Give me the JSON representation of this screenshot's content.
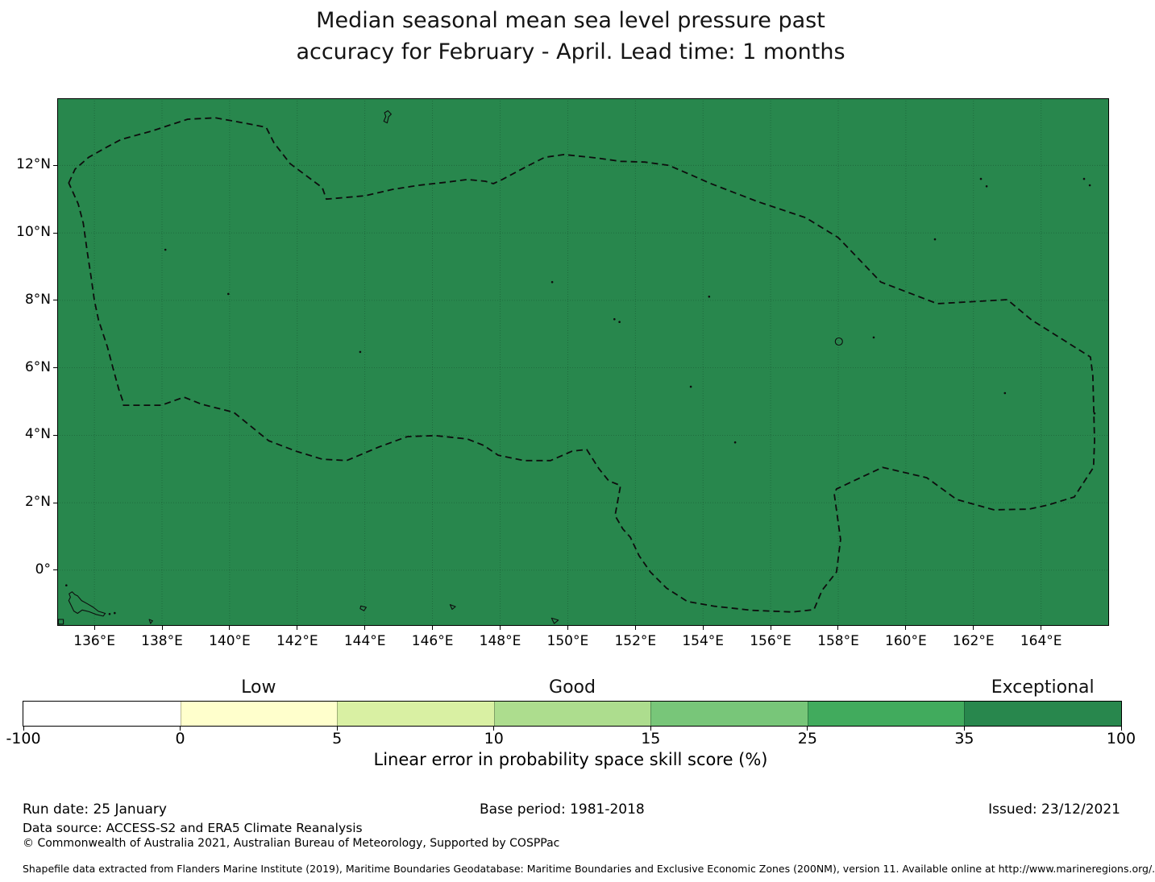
{
  "title": {
    "line1": "Median seasonal mean sea level pressure past",
    "line2": "accuracy for February - April. Lead time: 1 months"
  },
  "map": {
    "type": "filled geographic map",
    "fill_color": "#28874d",
    "extent": {
      "lon_min": 134.9,
      "lon_max": 166.01,
      "lat_min": -1.65,
      "lat_max": 13.99
    },
    "x_ticks": [
      {
        "lon": 136,
        "label": "136°E"
      },
      {
        "lon": 138,
        "label": "138°E"
      },
      {
        "lon": 140,
        "label": "140°E"
      },
      {
        "lon": 142,
        "label": "142°E"
      },
      {
        "lon": 144,
        "label": "144°E"
      },
      {
        "lon": 146,
        "label": "146°E"
      },
      {
        "lon": 148,
        "label": "148°E"
      },
      {
        "lon": 150,
        "label": "150°E"
      },
      {
        "lon": 152,
        "label": "152°E"
      },
      {
        "lon": 154,
        "label": "154°E"
      },
      {
        "lon": 156,
        "label": "156°E"
      },
      {
        "lon": 158,
        "label": "158°E"
      },
      {
        "lon": 160,
        "label": "160°E"
      },
      {
        "lon": 162,
        "label": "162°E"
      },
      {
        "lon": 164,
        "label": "164°E"
      }
    ],
    "y_ticks": [
      {
        "lat": 12,
        "label": "12°N"
      },
      {
        "lat": 10,
        "label": "10°N"
      },
      {
        "lat": 8,
        "label": "8°N"
      },
      {
        "lat": 6,
        "label": "6°N"
      },
      {
        "lat": 4,
        "label": "4°N"
      },
      {
        "lat": 2,
        "label": "2°N"
      },
      {
        "lat": 0,
        "label": "0°"
      }
    ],
    "eez_boundary": [
      [
        135.24,
        11.48
      ],
      [
        135.43,
        11.89
      ],
      [
        135.83,
        12.24
      ],
      [
        136.38,
        12.55
      ],
      [
        136.79,
        12.77
      ],
      [
        137.67,
        13.01
      ],
      [
        138.76,
        13.37
      ],
      [
        139.58,
        13.41
      ],
      [
        140.36,
        13.27
      ],
      [
        141.08,
        13.13
      ],
      [
        141.31,
        12.67
      ],
      [
        141.79,
        12.05
      ],
      [
        142.74,
        11.34
      ],
      [
        142.86,
        11.0
      ],
      [
        144.01,
        11.1
      ],
      [
        144.82,
        11.29
      ],
      [
        145.6,
        11.41
      ],
      [
        146.39,
        11.5
      ],
      [
        147.03,
        11.58
      ],
      [
        147.56,
        11.53
      ],
      [
        147.8,
        11.46
      ],
      [
        148.06,
        11.58
      ],
      [
        148.77,
        11.96
      ],
      [
        149.32,
        12.24
      ],
      [
        149.89,
        12.32
      ],
      [
        150.85,
        12.22
      ],
      [
        151.56,
        12.12
      ],
      [
        152.28,
        12.1
      ],
      [
        152.99,
        12.0
      ],
      [
        153.71,
        11.69
      ],
      [
        154.18,
        11.48
      ],
      [
        155.61,
        10.93
      ],
      [
        157.04,
        10.45
      ],
      [
        158.0,
        9.86
      ],
      [
        159.26,
        8.54
      ],
      [
        160.93,
        7.9
      ],
      [
        163.0,
        8.02
      ],
      [
        163.72,
        7.42
      ],
      [
        165.46,
        6.32
      ],
      [
        165.53,
        5.75
      ],
      [
        165.58,
        3.84
      ],
      [
        165.55,
        3.05
      ],
      [
        164.98,
        2.17
      ],
      [
        164.19,
        1.93
      ],
      [
        163.64,
        1.81
      ],
      [
        162.6,
        1.79
      ],
      [
        161.5,
        2.1
      ],
      [
        160.62,
        2.74
      ],
      [
        159.31,
        3.05
      ],
      [
        157.95,
        2.41
      ],
      [
        157.88,
        2.27
      ],
      [
        158.07,
        0.91
      ],
      [
        157.95,
        -0.05
      ],
      [
        157.52,
        -0.6
      ],
      [
        157.28,
        -1.17
      ],
      [
        156.64,
        -1.24
      ],
      [
        155.45,
        -1.19
      ],
      [
        154.35,
        -1.07
      ],
      [
        153.54,
        -0.93
      ],
      [
        152.92,
        -0.53
      ],
      [
        152.44,
        -0.05
      ],
      [
        152.11,
        0.43
      ],
      [
        151.85,
        0.98
      ],
      [
        151.63,
        1.22
      ],
      [
        151.4,
        1.62
      ],
      [
        151.56,
        2.51
      ],
      [
        151.21,
        2.65
      ],
      [
        150.92,
        3.01
      ],
      [
        150.56,
        3.58
      ],
      [
        150.13,
        3.53
      ],
      [
        149.49,
        3.25
      ],
      [
        148.7,
        3.25
      ],
      [
        147.94,
        3.41
      ],
      [
        147.51,
        3.7
      ],
      [
        147.03,
        3.89
      ],
      [
        146.08,
        3.99
      ],
      [
        145.25,
        3.96
      ],
      [
        144.41,
        3.65
      ],
      [
        143.46,
        3.25
      ],
      [
        142.74,
        3.29
      ],
      [
        141.96,
        3.53
      ],
      [
        141.15,
        3.84
      ],
      [
        140.12,
        4.68
      ],
      [
        139.17,
        4.92
      ],
      [
        138.65,
        5.13
      ],
      [
        137.98,
        4.89
      ],
      [
        136.86,
        4.89
      ],
      [
        136.83,
        5.04
      ],
      [
        136.72,
        5.37
      ],
      [
        136.55,
        5.99
      ],
      [
        136.38,
        6.63
      ],
      [
        136.12,
        7.42
      ],
      [
        136.0,
        8.0
      ],
      [
        135.9,
        8.71
      ],
      [
        135.79,
        9.43
      ],
      [
        135.67,
        10.29
      ],
      [
        135.52,
        10.86
      ]
    ],
    "islands": {
      "outlines": [
        [
          [
            144.58,
            13.56
          ],
          [
            144.68,
            13.62
          ],
          [
            144.78,
            13.52
          ],
          [
            144.7,
            13.44
          ],
          [
            144.66,
            13.26
          ],
          [
            144.56,
            13.31
          ],
          [
            144.62,
            13.45
          ]
        ],
        [
          [
            135.25,
            -0.7
          ],
          [
            135.34,
            -0.64
          ],
          [
            135.42,
            -0.72
          ],
          [
            135.5,
            -0.76
          ],
          [
            135.62,
            -0.9
          ],
          [
            135.8,
            -1.0
          ],
          [
            135.97,
            -1.1
          ],
          [
            136.12,
            -1.22
          ],
          [
            136.32,
            -1.28
          ],
          [
            136.26,
            -1.36
          ],
          [
            136.05,
            -1.31
          ],
          [
            135.84,
            -1.23
          ],
          [
            135.64,
            -1.18
          ],
          [
            135.5,
            -1.28
          ],
          [
            135.39,
            -1.21
          ],
          [
            135.31,
            -1.04
          ],
          [
            135.24,
            -0.9
          ],
          [
            135.29,
            -0.8
          ]
        ],
        [
          [
            134.93,
            -1.46
          ],
          [
            135.08,
            -1.46
          ],
          [
            135.08,
            -1.6
          ],
          [
            134.93,
            -1.6
          ]
        ],
        [
          [
            137.62,
            -1.46
          ],
          [
            137.72,
            -1.5
          ],
          [
            137.66,
            -1.58
          ]
        ],
        [
          [
            143.88,
            -1.06
          ],
          [
            144.04,
            -1.1
          ],
          [
            143.97,
            -1.2
          ],
          [
            143.86,
            -1.14
          ]
        ],
        [
          [
            146.52,
            -1.02
          ],
          [
            146.68,
            -1.08
          ],
          [
            146.58,
            -1.16
          ]
        ],
        [
          [
            149.52,
            -1.42
          ],
          [
            149.72,
            -1.48
          ],
          [
            149.6,
            -1.58
          ]
        ]
      ],
      "atoll_ring": [
        158.02,
        6.78
      ],
      "specks": [
        [
          135.17,
          -0.45
        ],
        [
          136.45,
          -1.3
        ],
        [
          136.6,
          -1.27
        ],
        [
          138.1,
          9.5
        ],
        [
          139.96,
          8.19
        ],
        [
          143.86,
          6.47
        ],
        [
          149.54,
          8.54
        ],
        [
          151.38,
          7.44
        ],
        [
          151.53,
          7.36
        ],
        [
          153.64,
          5.44
        ],
        [
          154.18,
          8.11
        ],
        [
          154.95,
          3.79
        ],
        [
          159.05,
          6.9
        ],
        [
          160.86,
          9.81
        ],
        [
          162.22,
          11.6
        ],
        [
          162.39,
          11.38
        ],
        [
          162.93,
          5.25
        ],
        [
          165.27,
          11.6
        ],
        [
          165.44,
          11.41
        ],
        [
          165.58,
          4.65
        ]
      ]
    }
  },
  "colorbar": {
    "axis_label": "Linear error in probability space skill score (%)",
    "tick_labels": [
      "-100",
      "0",
      "5",
      "10",
      "15",
      "25",
      "35",
      "100"
    ],
    "segments": [
      {
        "range": "-100 to 0",
        "color": "#ffffff"
      },
      {
        "range": "0 to 5",
        "color": "#ffffcc"
      },
      {
        "range": "5 to 10",
        "color": "#d9f0a3"
      },
      {
        "range": "10 to 15",
        "color": "#addd8e"
      },
      {
        "range": "15 to 25",
        "color": "#78c679"
      },
      {
        "range": "25 to 35",
        "color": "#41ab5d"
      },
      {
        "range": "35 to 100",
        "color": "#28874d"
      }
    ],
    "categories": [
      {
        "label": "Low",
        "segment_index": 1
      },
      {
        "label": "Good",
        "segment_index": 3
      },
      {
        "label": "Exceptional",
        "segment_index": 6
      }
    ]
  },
  "footer": {
    "run_date": "Run date: 25 January",
    "base_period": "Base period: 1981-2018",
    "issued": "Issued: 23/12/2021",
    "data_source": "Data source: ACCESS-S2 and ERA5 Climate Reanalysis",
    "copyright": "© Commonwealth of Australia 2021, Australian Bureau of Meteorology, Supported by COSPPac",
    "shapefile_note": "Shapefile data extracted from Flanders Marine Institute (2019), Maritime Boundaries Geodatabase: Maritime Boundaries and Exclusive Economic Zones (200NM), version 11. Available online at http://www.marineregions.org/."
  }
}
